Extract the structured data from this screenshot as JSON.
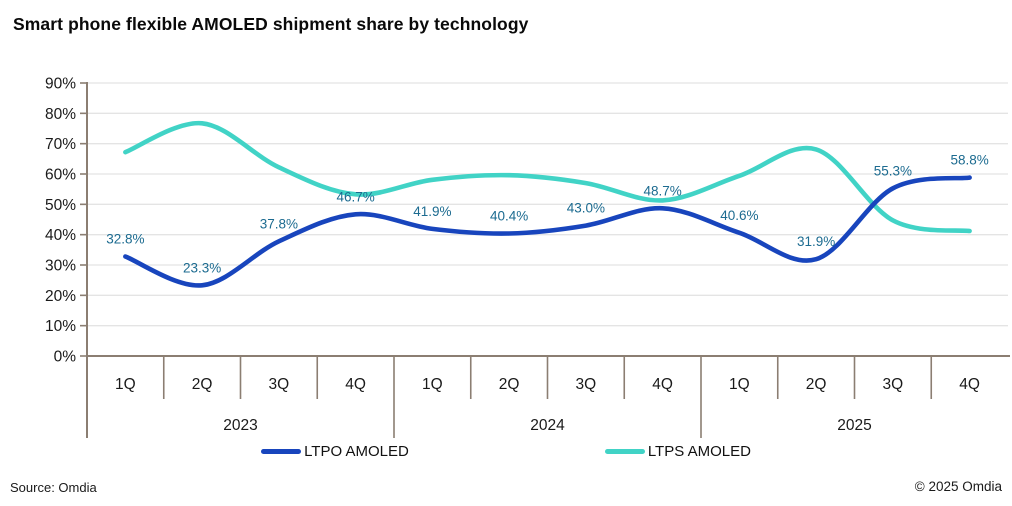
{
  "title": "Smart phone flexible AMOLED shipment share by technology",
  "footer": {
    "source": "Source: Omdia",
    "copyright": "© 2025 Omdia"
  },
  "chart_data": {
    "type": "line",
    "title": "Smart phone flexible AMOLED shipment share by technology",
    "categories": [
      "1Q",
      "2Q",
      "3Q",
      "4Q",
      "1Q",
      "2Q",
      "3Q",
      "4Q",
      "1Q",
      "2Q",
      "3Q",
      "4Q"
    ],
    "year_groups": [
      {
        "label": "2023",
        "quarters": 4
      },
      {
        "label": "2024",
        "quarters": 4
      },
      {
        "label": "2025",
        "quarters": 4
      }
    ],
    "series": [
      {
        "name": "LTPO AMOLED",
        "color": "#1845bd",
        "values": [
          32.8,
          23.3,
          37.8,
          46.7,
          41.9,
          40.4,
          43.0,
          48.7,
          40.6,
          31.9,
          55.3,
          58.8
        ],
        "data_labels": [
          "32.8%",
          "23.3%",
          "37.8%",
          "46.7%",
          "41.9%",
          "40.4%",
          "43.0%",
          "48.7%",
          "40.6%",
          "31.9%",
          "55.3%",
          "58.8%"
        ]
      },
      {
        "name": "LTPS AMOLED",
        "color": "#41d3c6",
        "values": [
          67.2,
          76.7,
          62.2,
          53.3,
          58.1,
          59.6,
          57.0,
          51.3,
          59.4,
          68.1,
          44.7,
          41.2
        ],
        "data_labels": null
      }
    ],
    "y_axis": {
      "min": 0,
      "max": 90,
      "step": 10,
      "tick_labels": [
        "0%",
        "10%",
        "20%",
        "30%",
        "40%",
        "50%",
        "60%",
        "70%",
        "80%",
        "90%"
      ]
    },
    "grid": true,
    "legend_position": "bottom",
    "styles": {
      "data_label_color": "#1c6b90",
      "axis_color": "#8b7e72",
      "grid_color": "#e4e4e4",
      "tick_text_color": "#1a1a1a"
    }
  }
}
